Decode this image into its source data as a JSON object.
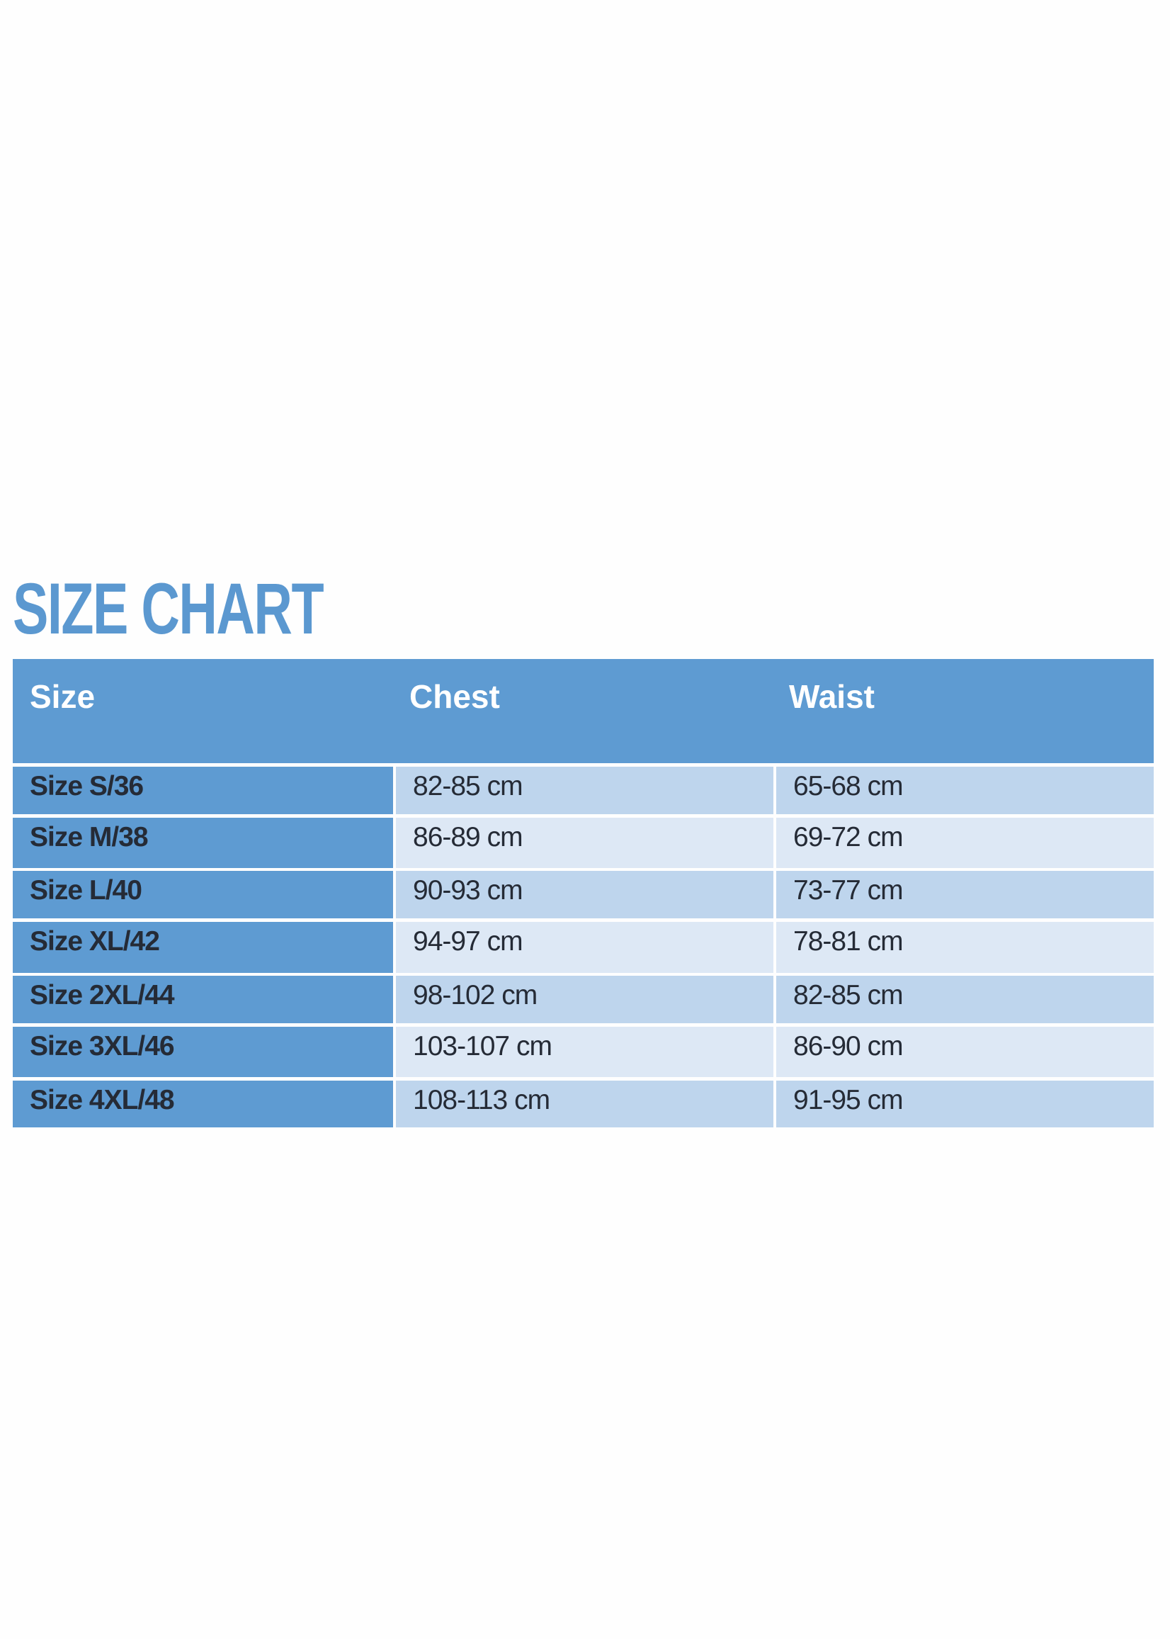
{
  "title": "SIZE CHART",
  "colors": {
    "title": "#5b98d0",
    "header": "#5e9bd2",
    "row_dark": "#bed5ed",
    "row_light": "#dde8f5",
    "text": "#252b36"
  },
  "table": {
    "headers": [
      "Size",
      "Chest",
      "Waist"
    ],
    "rows": [
      [
        "Size S/36",
        "82-85 cm",
        "65-68 cm"
      ],
      [
        "Size M/38",
        "86-89 cm",
        "69-72 cm"
      ],
      [
        "Size L/40",
        "90-93 cm",
        "73-77 cm"
      ],
      [
        "Size XL/42",
        "94-97 cm",
        "78-81 cm"
      ],
      [
        "Size 2XL/44",
        "98-102 cm",
        "82-85 cm"
      ],
      [
        "Size 3XL/46",
        "103-107 cm",
        "86-90 cm"
      ],
      [
        "Size 4XL/48",
        "108-113 cm",
        "91-95 cm"
      ]
    ]
  }
}
